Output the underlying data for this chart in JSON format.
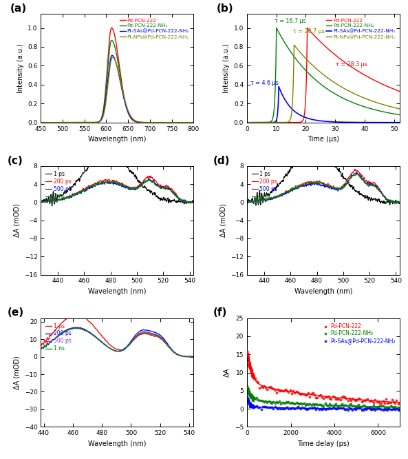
{
  "fig_width": 5.93,
  "fig_height": 6.66,
  "dpi": 100,
  "panel_labels": [
    "(a)",
    "(b)",
    "(c)",
    "(d)",
    "(e)",
    "(f)"
  ],
  "panel_label_fontsize": 11,
  "colors": {
    "red": "#FF0000",
    "green": "#008000",
    "blue": "#0000FF",
    "olive": "#808000",
    "purple": "#9B30FF"
  },
  "legend_a": [
    "Pd-PCN-222",
    "Pd-PCN-222-NH₂",
    "Pt-SAs@Pd-PCN-222-NH₂",
    "Pt-NPs@Pd-PCN-222-NH₂"
  ],
  "legend_b": [
    "Pd-PCN-222",
    "Pd-PCN-222-NH₂",
    "Pt-SAs@Pd-PCN-222-NH₂",
    "Pt-NPs@Pd-PCN-222-NH₂"
  ],
  "legend_cde": [
    "1 ps",
    "200 ps",
    "500 ps",
    "1 ns"
  ],
  "legend_f": [
    "Pd-PCN-222",
    "Pd-PCN-222-NH₂",
    "Pt-SAs@Pd-PCN-222-NH₂"
  ],
  "tau_labels": {
    "green": "τ = 16.7 μs",
    "red": "τ = 28.3 μs",
    "olive": "τ = 20.7 μs",
    "blue": "τ = 4.6 μs"
  },
  "ax_a": {
    "xlim": [
      450,
      800
    ],
    "ylim": [
      0,
      1.15
    ],
    "xticks": 50
  },
  "ax_b": {
    "xlim": [
      0,
      52
    ],
    "ylim": [
      0,
      1.15
    ],
    "xticks": 10
  },
  "ax_c": {
    "xlim": [
      427,
      543
    ],
    "ylim": [
      -16,
      8
    ],
    "xticks": 20,
    "yticks": 4
  },
  "ax_d": {
    "xlim": [
      427,
      543
    ],
    "ylim": [
      -16,
      8
    ],
    "xticks": 20,
    "yticks": 4
  },
  "ax_e": {
    "xlim": [
      438,
      543
    ],
    "ylim": [
      -40,
      22
    ],
    "xticks": 20,
    "yticks": 10
  },
  "ax_f": {
    "xlim": [
      0,
      7000
    ],
    "ylim": [
      -5,
      25
    ],
    "xticks": 2000
  }
}
